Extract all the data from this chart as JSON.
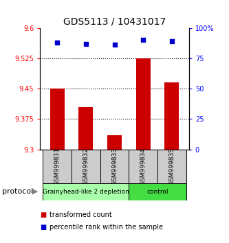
{
  "title": "GDS5113 / 10431017",
  "samples": [
    "GSM999831",
    "GSM999832",
    "GSM999833",
    "GSM999834",
    "GSM999835"
  ],
  "bar_values": [
    9.45,
    9.405,
    9.335,
    9.525,
    9.465
  ],
  "bar_bottom": 9.3,
  "percentile_values": [
    88,
    87,
    86,
    90,
    89
  ],
  "bar_color": "#cc0000",
  "point_color": "#0000cc",
  "ylim_left": [
    9.3,
    9.6
  ],
  "ylim_right": [
    0,
    100
  ],
  "yticks_left": [
    9.3,
    9.375,
    9.45,
    9.525,
    9.6
  ],
  "ytick_labels_left": [
    "9.3",
    "9.375",
    "9.45",
    "9.525",
    "9.6"
  ],
  "yticks_right": [
    0,
    25,
    50,
    75,
    100
  ],
  "ytick_labels_right": [
    "0",
    "25",
    "50",
    "75",
    "100%"
  ],
  "grid_values": [
    9.375,
    9.45,
    9.525
  ],
  "protocol_groups": [
    {
      "label": "Grainyhead-like 2 depletion",
      "indices": [
        0,
        1,
        2
      ],
      "color": "#aaffaa"
    },
    {
      "label": "control",
      "indices": [
        3,
        4
      ],
      "color": "#44dd44"
    }
  ],
  "protocol_label": "protocol",
  "legend_items": [
    {
      "color": "#cc0000",
      "label": "transformed count"
    },
    {
      "color": "#0000cc",
      "label": "percentile rank within the sample"
    }
  ],
  "sample_box_color": "#cccccc",
  "title_fontsize": 10,
  "tick_fontsize": 7,
  "bar_width": 0.5
}
